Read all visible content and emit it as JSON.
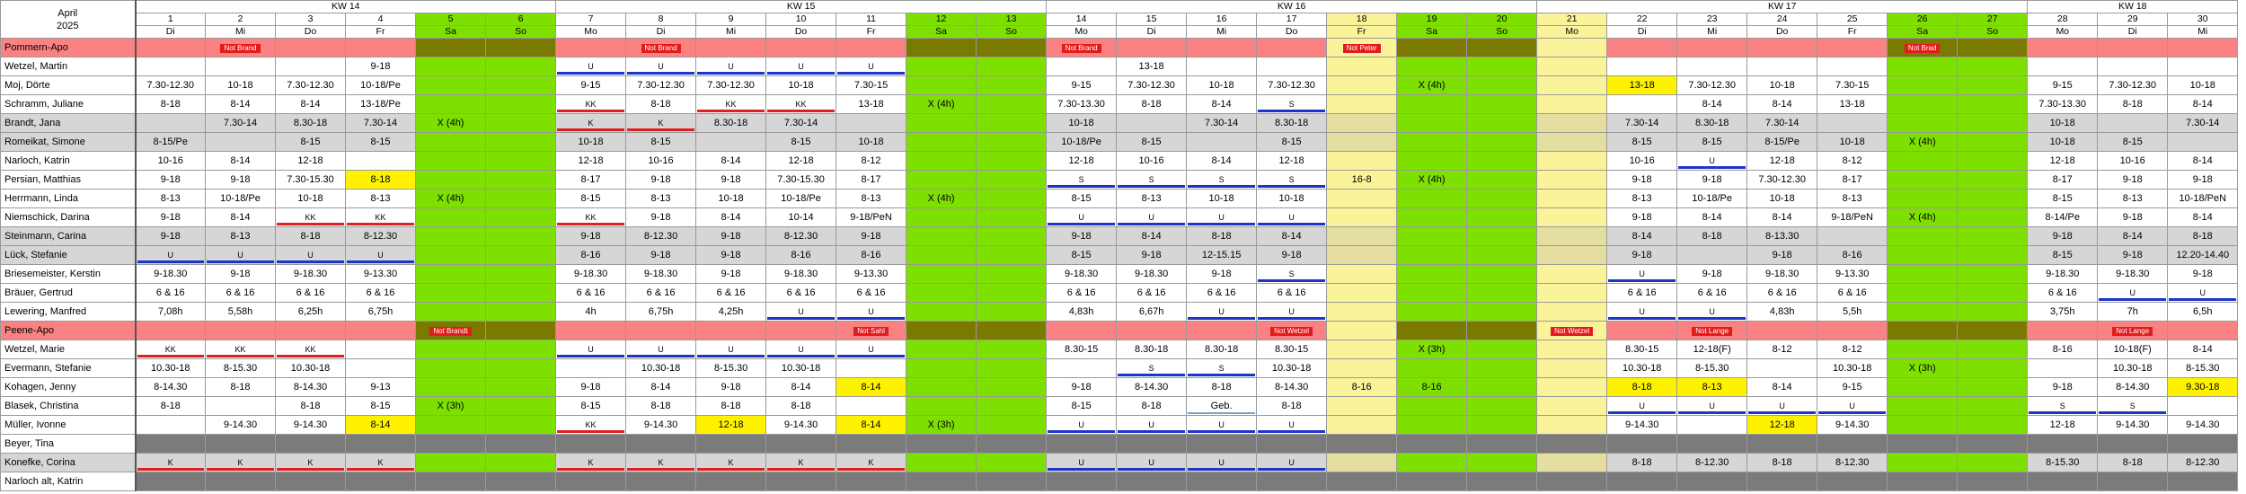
{
  "title": {
    "month": "April",
    "year": "2025"
  },
  "weeks": [
    {
      "label": "KW 14",
      "span": 6
    },
    {
      "label": "KW 15",
      "span": 7
    },
    {
      "label": "KW 16",
      "span": 7
    },
    {
      "label": "KW 17",
      "span": 7
    },
    {
      "label": "KW 18",
      "span": 3
    }
  ],
  "days": [
    {
      "n": "1",
      "d": "Di",
      "t": "w"
    },
    {
      "n": "2",
      "d": "Mi",
      "t": "w"
    },
    {
      "n": "3",
      "d": "Do",
      "t": "w"
    },
    {
      "n": "4",
      "d": "Fr",
      "t": "w"
    },
    {
      "n": "5",
      "d": "Sa",
      "t": "e"
    },
    {
      "n": "6",
      "d": "So",
      "t": "e"
    },
    {
      "n": "7",
      "d": "Mo",
      "t": "w"
    },
    {
      "n": "8",
      "d": "Di",
      "t": "w"
    },
    {
      "n": "9",
      "d": "Mi",
      "t": "w"
    },
    {
      "n": "10",
      "d": "Do",
      "t": "w"
    },
    {
      "n": "11",
      "d": "Fr",
      "t": "w"
    },
    {
      "n": "12",
      "d": "Sa",
      "t": "e"
    },
    {
      "n": "13",
      "d": "So",
      "t": "e"
    },
    {
      "n": "14",
      "d": "Mo",
      "t": "w"
    },
    {
      "n": "15",
      "d": "Di",
      "t": "w"
    },
    {
      "n": "16",
      "d": "Mi",
      "t": "w"
    },
    {
      "n": "17",
      "d": "Do",
      "t": "w"
    },
    {
      "n": "18",
      "d": "Fr",
      "t": "h"
    },
    {
      "n": "19",
      "d": "Sa",
      "t": "e"
    },
    {
      "n": "20",
      "d": "So",
      "t": "e"
    },
    {
      "n": "21",
      "d": "Mo",
      "t": "h"
    },
    {
      "n": "22",
      "d": "Di",
      "t": "w"
    },
    {
      "n": "23",
      "d": "Mi",
      "t": "w"
    },
    {
      "n": "24",
      "d": "Do",
      "t": "w"
    },
    {
      "n": "25",
      "d": "Fr",
      "t": "w"
    },
    {
      "n": "26",
      "d": "Sa",
      "t": "e"
    },
    {
      "n": "27",
      "d": "So",
      "t": "e"
    },
    {
      "n": "28",
      "d": "Mo",
      "t": "w"
    },
    {
      "n": "29",
      "d": "Di",
      "t": "w"
    },
    {
      "n": "30",
      "d": "Mi",
      "t": "w"
    }
  ],
  "rows": [
    {
      "name": "Pommern-Apo",
      "type": "group",
      "cells": {
        "1": "B:Not Brand",
        "7": "B:Not Brand",
        "13": "B:Not Brand",
        "17": "B:Not Peter",
        "25": "B:Not Brad"
      }
    },
    {
      "name": "Wetzel, Martin",
      "cells": {
        "3": "9-18",
        "6": "U|ub",
        "7": "U|ub",
        "8": "U|ub",
        "9": "U|ub",
        "10": "U|ub",
        "14": "13-18"
      }
    },
    {
      "name": "Moj, Dörte",
      "cells": {
        "0": "7.30-12.30",
        "1": "10-18",
        "2": "7.30-12.30",
        "3": "10-18/Pe",
        "6": "9-15",
        "7": "7.30-12.30",
        "8": "7.30-12.30",
        "9": "10-18",
        "10": "7.30-15",
        "13": "9-15",
        "14": "7.30-12.30",
        "15": "10-18",
        "16": "7.30-12.30",
        "18": "X (4h)",
        "21": "13-18|hl",
        "22": "7.30-12.30",
        "23": "10-18",
        "24": "7.30-15",
        "27": "9-15",
        "28": "7.30-12.30",
        "29": "10-18"
      }
    },
    {
      "name": "Schramm, Juliane",
      "cells": {
        "0": "8-18",
        "1": "8-14",
        "2": "8-14",
        "3": "13-18/Pe",
        "6": "KK|ur",
        "7": "8-18",
        "8": "KK|ur",
        "9": "KK|ur",
        "10": "13-18",
        "11": "X (4h)",
        "13": "7.30-13.30",
        "14": "8-18",
        "15": "8-14",
        "16": "S|ub",
        "22": "8-14",
        "23": "8-14",
        "24": "13-18",
        "27": "7.30-13.30",
        "28": "8-18",
        "29": "8-14"
      }
    },
    {
      "name": "Brandt, Jana",
      "type": "gray",
      "cells": {
        "1": "7.30-14",
        "2": "8.30-18",
        "3": "7.30-14",
        "4": "X (4h)",
        "6": "K|ur",
        "7": "K|ur",
        "8": "8.30-18",
        "9": "7.30-14",
        "13": "10-18",
        "15": "7.30-14",
        "16": "8.30-18",
        "21": "7.30-14",
        "22": "8.30-18",
        "23": "7.30-14",
        "27": "10-18",
        "29": "7.30-14"
      }
    },
    {
      "name": "Romeikat, Simone",
      "type": "gray",
      "cells": {
        "0": "8-15/Pe",
        "2": "8-15",
        "3": "8-15",
        "6": "10-18",
        "7": "8-15",
        "9": "8-15",
        "10": "10-18",
        "13": "10-18/Pe",
        "14": "8-15",
        "16": "8-15",
        "21": "8-15",
        "22": "8-15",
        "23": "8-15/Pe",
        "24": "10-18",
        "25": "X (4h)",
        "27": "10-18",
        "28": "8-15"
      }
    },
    {
      "name": "Narloch, Katrin",
      "cells": {
        "0": "10-16",
        "1": "8-14",
        "2": "12-18",
        "6": "12-18",
        "7": "10-16",
        "8": "8-14",
        "9": "12-18",
        "10": "8-12",
        "13": "12-18",
        "14": "10-16",
        "15": "8-14",
        "16": "12-18",
        "21": "10-16",
        "22": "U|ub",
        "23": "12-18",
        "24": "8-12",
        "27": "12-18",
        "28": "10-16",
        "29": "8-14"
      }
    },
    {
      "name": "Persian, Matthias",
      "cells": {
        "0": "9-18",
        "1": "9-18",
        "2": "7.30-15.30",
        "3": "8-18|hl",
        "6": "8-17",
        "7": "9-18",
        "8": "9-18",
        "9": "7.30-15.30",
        "10": "8-17",
        "13": "S|ub",
        "14": "S|ub",
        "15": "S|ub",
        "16": "S|ub",
        "17": "16-8",
        "18": "X (4h)",
        "21": "9-18",
        "22": "9-18",
        "23": "7.30-12.30",
        "24": "8-17",
        "27": "8-17",
        "28": "9-18",
        "29": "9-18"
      }
    },
    {
      "name": "Herrmann, Linda",
      "cells": {
        "0": "8-13",
        "1": "10-18/Pe",
        "2": "10-18",
        "3": "8-13",
        "4": "X (4h)",
        "6": "8-15",
        "7": "8-13",
        "8": "10-18",
        "9": "10-18/Pe",
        "10": "8-13",
        "11": "X (4h)",
        "13": "8-15",
        "14": "8-13",
        "15": "10-18",
        "16": "10-18",
        "21": "8-13",
        "22": "10-18/Pe",
        "23": "10-18",
        "24": "8-13",
        "27": "8-15",
        "28": "8-13",
        "29": "10-18/PeN"
      }
    },
    {
      "name": "Niemschick, Darina",
      "cells": {
        "0": "9-18",
        "1": "8-14",
        "2": "KK|ur",
        "3": "KK|ur",
        "6": "KK|ur",
        "7": "9-18",
        "8": "8-14",
        "9": "10-14",
        "10": "9-18/PeN",
        "13": "U|ub",
        "14": "U|ub",
        "15": "U|ub",
        "16": "U|ub",
        "21": "9-18",
        "22": "8-14",
        "23": "8-14",
        "24": "9-18/PeN",
        "25": "X (4h)",
        "27": "8-14/Pe",
        "28": "9-18",
        "29": "8-14"
      }
    },
    {
      "name": "Steinmann, Carina",
      "type": "gray",
      "cells": {
        "0": "9-18",
        "1": "8-13",
        "2": "8-18",
        "3": "8-12.30",
        "6": "9-18",
        "7": "8-12.30",
        "8": "9-18",
        "9": "8-12.30",
        "10": "9-18",
        "13": "9-18",
        "14": "8-14",
        "15": "8-18",
        "16": "8-14",
        "21": "8-14",
        "22": "8-18",
        "23": "8-13.30",
        "27": "9-18",
        "28": "8-14",
        "29": "8-18"
      }
    },
    {
      "name": "Lück, Stefanie",
      "type": "gray",
      "cells": {
        "0": "U|ub",
        "1": "U|ub",
        "2": "U|ub",
        "3": "U|ub",
        "6": "8-16",
        "7": "9-18",
        "8": "9-18",
        "9": "8-16",
        "10": "8-16",
        "13": "8-15",
        "14": "9-18",
        "15": "12-15.15",
        "16": "9-18",
        "21": "9-18",
        "23": "9-18",
        "24": "8-16",
        "27": "8-15",
        "28": "9-18",
        "29": "12.20-14.40"
      }
    },
    {
      "name": "Briesemeister, Kerstin",
      "cells": {
        "0": "9-18.30",
        "1": "9-18",
        "2": "9-18.30",
        "3": "9-13.30",
        "6": "9-18.30",
        "7": "9-18.30",
        "8": "9-18",
        "9": "9-18.30",
        "10": "9-13.30",
        "13": "9-18.30",
        "14": "9-18.30",
        "15": "9-18",
        "16": "S|ub",
        "21": "U|ub",
        "22": "9-18",
        "23": "9-18.30",
        "24": "9-13.30",
        "27": "9-18.30",
        "28": "9-18.30",
        "29": "9-18"
      }
    },
    {
      "name": "Bräuer, Gertrud",
      "cells": {
        "0": "6 & 16",
        "1": "6 & 16",
        "2": "6 & 16",
        "3": "6 & 16",
        "6": "6 & 16",
        "7": "6 & 16",
        "8": "6 & 16",
        "9": "6 & 16",
        "10": "6 & 16",
        "13": "6 & 16",
        "14": "6 & 16",
        "15": "6 & 16",
        "16": "6 & 16",
        "21": "6 & 16",
        "22": "6 & 16",
        "23": "6 & 16",
        "24": "6 & 16",
        "27": "6 & 16",
        "28": "U|ub",
        "29": "U|ub"
      }
    },
    {
      "name": "Lewering, Manfred",
      "cells": {
        "0": "7,08h",
        "1": "5,58h",
        "2": "6,25h",
        "3": "6,75h",
        "6": "4h",
        "7": "6,75h",
        "8": "4,25h",
        "9": "U|ub",
        "10": "U|ub",
        "13": "4,83h",
        "14": "6,67h",
        "15": "U|ub",
        "16": "U|ub",
        "21": "U|ub",
        "22": "U|ub",
        "23": "4,83h",
        "24": "5,5h",
        "27": "3,75h",
        "28": "7h",
        "29": "6,5h"
      }
    },
    {
      "name": "Peene-Apo",
      "type": "group",
      "cells": {
        "4": "B:Not Brandt",
        "10": "B:Not Sahl",
        "16": "B:Not Wetzel",
        "20": "B:Not Wetzel",
        "22": "B:Not Lange",
        "28": "B:Not Lange"
      }
    },
    {
      "name": "Wetzel, Marie",
      "cells": {
        "0": "KK|ur",
        "1": "KK|ur",
        "2": "KK|ur",
        "6": "U|ub",
        "7": "U|ub",
        "8": "U|ub",
        "9": "U|ub",
        "10": "U|ub",
        "13": "8.30-15",
        "14": "8.30-18",
        "15": "8.30-18",
        "16": "8.30-15",
        "18": "X (3h)",
        "21": "8.30-15",
        "22": "12-18(F)",
        "23": "8-12",
        "24": "8-12",
        "27": "8-16",
        "28": "10-18(F)",
        "29": "8-14"
      }
    },
    {
      "name": "Evermann, Stefanie",
      "cells": {
        "0": "10.30-18",
        "1": "8-15.30",
        "2": "10.30-18",
        "7": "10.30-18",
        "8": "8-15.30",
        "9": "10.30-18",
        "14": "S|ub",
        "15": "S|ub",
        "16": "10.30-18",
        "21": "10.30-18",
        "22": "8-15.30",
        "24": "10.30-18",
        "25": "X (3h)",
        "28": "10.30-18",
        "29": "8-15.30"
      }
    },
    {
      "name": "Kohagen, Jenny",
      "cells": {
        "0": "8-14.30",
        "1": "8-18",
        "2": "8-14.30",
        "3": "9-13",
        "6": "9-18",
        "7": "8-14",
        "8": "9-18",
        "9": "8-14",
        "10": "8-14|hl",
        "13": "9-18",
        "14": "8-14.30",
        "15": "8-18",
        "16": "8-14.30",
        "17": "8-16",
        "18": "8-16",
        "21": "8-18|hl",
        "22": "8-13|hl",
        "23": "8-14",
        "24": "9-15",
        "27": "9-18",
        "28": "8-14.30",
        "29": "9.30-18|hl"
      }
    },
    {
      "name": "Blasek, Christina",
      "cells": {
        "0": "8-18",
        "2": "8-18",
        "3": "8-15",
        "4": "X (3h)",
        "6": "8-15",
        "7": "8-18",
        "8": "8-18",
        "9": "8-18",
        "13": "8-15",
        "14": "8-18",
        "15": "Geb.|ug",
        "16": "8-18",
        "21": "U|ub",
        "22": "U|ub",
        "23": "U|ub",
        "24": "U|ub",
        "27": "S|ub",
        "28": "S|ub"
      }
    },
    {
      "name": "Müller, Ivonne",
      "cells": {
        "1": "9-14.30",
        "2": "9-14.30",
        "3": "8-14|hl",
        "6": "KK|ur",
        "7": "9-14.30",
        "8": "12-18|hl",
        "9": "9-14.30",
        "10": "8-14|hl",
        "11": "X (3h)",
        "13": "U|ub",
        "14": "U|ub",
        "15": "U|ub",
        "16": "U|ub",
        "21": "9-14.30",
        "23": "12-18|hl",
        "24": "9-14.30",
        "27": "12-18",
        "28": "9-14.30",
        "29": "9-14.30"
      }
    },
    {
      "name": "Beyer, Tina",
      "type": "dark",
      "cells": {}
    },
    {
      "name": "Konefke, Corina",
      "type": "gray",
      "cells": {
        "0": "K|ur",
        "1": "K|ur",
        "2": "K|ur",
        "3": "K|ur",
        "6": "K|ur",
        "7": "K|ur",
        "8": "K|ur",
        "9": "K|ur",
        "10": "K|ur",
        "13": "U|ub",
        "14": "U|ub",
        "15": "U|ub",
        "16": "U|ub",
        "21": "8-18",
        "22": "8-12.30",
        "23": "8-18",
        "24": "8-12.30",
        "27": "8-15.30",
        "28": "8-18",
        "29": "8-12.30"
      }
    },
    {
      "name": "Narloch alt, Katrin",
      "type": "dark",
      "cells": {}
    }
  ]
}
